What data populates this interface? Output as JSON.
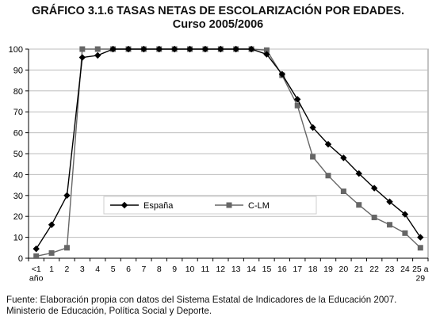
{
  "title": {
    "line1": "GRÁFICO 3.1.6 TASAS NETAS DE ESCOLARIZACIÓN POR EDADES.",
    "line2": "Curso 2005/2006"
  },
  "source": "Fuente: Elaboración propia con datos del Sistema Estatal de Indicadores de la Educación 2007. Ministerio de Educación, Política Social y Deporte.",
  "chart_data": {
    "type": "line",
    "categories": [
      [
        "<1",
        "año"
      ],
      [
        "1"
      ],
      [
        "2"
      ],
      [
        "3"
      ],
      [
        "4"
      ],
      [
        "5"
      ],
      [
        "6"
      ],
      [
        "7"
      ],
      [
        "8"
      ],
      [
        "9"
      ],
      [
        "10"
      ],
      [
        "11"
      ],
      [
        "12"
      ],
      [
        "13"
      ],
      [
        "14"
      ],
      [
        "15"
      ],
      [
        "16"
      ],
      [
        "17"
      ],
      [
        "18"
      ],
      [
        "19"
      ],
      [
        "20"
      ],
      [
        "21"
      ],
      [
        "22"
      ],
      [
        "23"
      ],
      [
        "24"
      ],
      [
        "25 a",
        "29"
      ]
    ],
    "series": [
      {
        "name": "España",
        "color": "#000000",
        "marker": "diamond",
        "values": [
          4.5,
          16,
          30,
          96,
          97,
          100,
          100,
          100,
          100,
          100,
          100,
          100,
          100,
          100,
          100,
          97.5,
          88,
          76,
          62.5,
          54.5,
          48,
          40.5,
          33.5,
          27,
          21,
          10
        ]
      },
      {
        "name": "C-LM",
        "color": "#666666",
        "marker": "square",
        "values": [
          1,
          2.5,
          5,
          100,
          100,
          100,
          100,
          100,
          100,
          100,
          100,
          100,
          100,
          100,
          100,
          99.5,
          87.5,
          73,
          48.5,
          39.5,
          32,
          25.5,
          19.5,
          16,
          12,
          5
        ]
      }
    ],
    "ylim": [
      0,
      100
    ],
    "yticks": [
      0,
      10,
      20,
      30,
      40,
      50,
      60,
      70,
      80,
      90,
      100
    ],
    "grid": "horizontal",
    "legend": "lower-right inside plot"
  }
}
